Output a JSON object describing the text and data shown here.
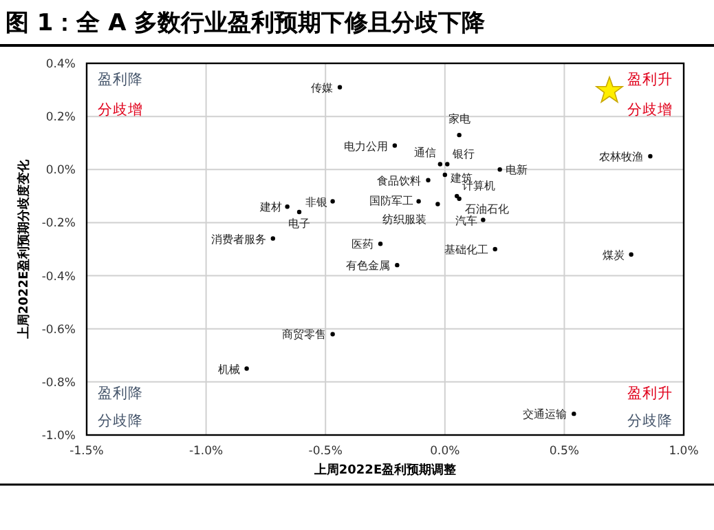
{
  "chart_data": {
    "type": "scatter",
    "title": "图 1：全 A 多数行业盈利预期下修且分歧下降",
    "xlabel": "上周2022E盈利预期调整",
    "ylabel": "上周2022E盈利预期分歧度变化",
    "xlim": [
      -1.5,
      1.0
    ],
    "ylim": [
      -1.0,
      0.4
    ],
    "xticks": [
      {
        "value": -1.5,
        "label": "-1.5%"
      },
      {
        "value": -1.0,
        "label": "-1.0%"
      },
      {
        "value": -0.5,
        "label": "-0.5%"
      },
      {
        "value": 0,
        "label": "0.0%"
      },
      {
        "value": 0.5,
        "label": "0.5%"
      },
      {
        "value": 1.0,
        "label": "1.0%"
      }
    ],
    "yticks": [
      {
        "value": 0.4,
        "label": "0.4%"
      },
      {
        "value": 0.2,
        "label": "0.2%"
      },
      {
        "value": 0,
        "label": "0.0%"
      },
      {
        "value": -0.2,
        "label": "-0.2%"
      },
      {
        "value": -0.4,
        "label": "-0.4%"
      },
      {
        "value": -0.6,
        "label": "-0.6%"
      },
      {
        "value": -0.8,
        "label": "-0.8%"
      },
      {
        "value": -1.0,
        "label": "-1.0%"
      }
    ],
    "grid": true,
    "marker": "circle",
    "series": [
      {
        "name": "传媒",
        "color": "#000000",
        "x": [
          -0.44
        ],
        "values": [
          0.31
        ]
      },
      {
        "name": "家电",
        "color": "#000000",
        "x": [
          0.06
        ],
        "values": [
          0.13
        ]
      },
      {
        "name": "电力公用",
        "color": "#000000",
        "x": [
          -0.21
        ],
        "values": [
          0.09
        ]
      },
      {
        "name": "通信",
        "color": "#000000",
        "x": [
          -0.02
        ],
        "values": [
          0.02
        ]
      },
      {
        "name": "银行",
        "color": "#000000",
        "x": [
          0.01
        ],
        "values": [
          0.02
        ]
      },
      {
        "name": "农林牧渔",
        "color": "#000000",
        "x": [
          0.86
        ],
        "values": [
          0.05
        ]
      },
      {
        "name": "食品饮料",
        "color": "#000000",
        "x": [
          -0.07
        ],
        "values": [
          -0.04
        ]
      },
      {
        "name": "建筑",
        "color": "#000000",
        "x": [
          0.0
        ],
        "values": [
          -0.02
        ]
      },
      {
        "name": "电新",
        "color": "#000000",
        "x": [
          0.23
        ],
        "values": [
          0.0
        ]
      },
      {
        "name": "计算机",
        "color": "#000000",
        "x": [
          0.05
        ],
        "values": [
          -0.1
        ]
      },
      {
        "name": "国防军工",
        "color": "#000000",
        "x": [
          -0.11
        ],
        "values": [
          -0.12
        ]
      },
      {
        "name": "纺织服装",
        "color": "#000000",
        "x": [
          -0.03
        ],
        "values": [
          -0.13
        ]
      },
      {
        "name": "石油石化",
        "color": "#000000",
        "x": [
          0.06
        ],
        "values": [
          -0.11
        ]
      },
      {
        "name": "汽车",
        "color": "#000000",
        "x": [
          0.16
        ],
        "values": [
          -0.19
        ]
      },
      {
        "name": "非银",
        "color": "#000000",
        "x": [
          -0.47
        ],
        "values": [
          -0.12
        ]
      },
      {
        "name": "建材",
        "color": "#000000",
        "x": [
          -0.66
        ],
        "values": [
          -0.14
        ]
      },
      {
        "name": "电子",
        "color": "#000000",
        "x": [
          -0.61
        ],
        "values": [
          -0.16
        ]
      },
      {
        "name": "消费者服务",
        "color": "#000000",
        "x": [
          -0.72
        ],
        "values": [
          -0.26
        ]
      },
      {
        "name": "医药",
        "color": "#000000",
        "x": [
          -0.27
        ],
        "values": [
          -0.28
        ]
      },
      {
        "name": "有色金属",
        "color": "#000000",
        "x": [
          -0.2
        ],
        "values": [
          -0.36
        ]
      },
      {
        "name": "基础化工",
        "color": "#000000",
        "x": [
          0.21
        ],
        "values": [
          -0.3
        ]
      },
      {
        "name": "煤炭",
        "color": "#000000",
        "x": [
          0.78
        ],
        "values": [
          -0.32
        ]
      },
      {
        "name": "商贸零售",
        "color": "#000000",
        "x": [
          -0.47
        ],
        "values": [
          -0.62
        ]
      },
      {
        "name": "机械",
        "color": "#000000",
        "x": [
          -0.83
        ],
        "values": [
          -0.75
        ]
      },
      {
        "name": "交通运输",
        "color": "#000000",
        "x": [
          0.54
        ],
        "values": [
          -0.92
        ]
      }
    ],
    "annotations": [
      "盈利降",
      "分歧增",
      "盈利升",
      "分歧增",
      "盈利降",
      "分歧降",
      "盈利升",
      "分歧降"
    ]
  }
}
